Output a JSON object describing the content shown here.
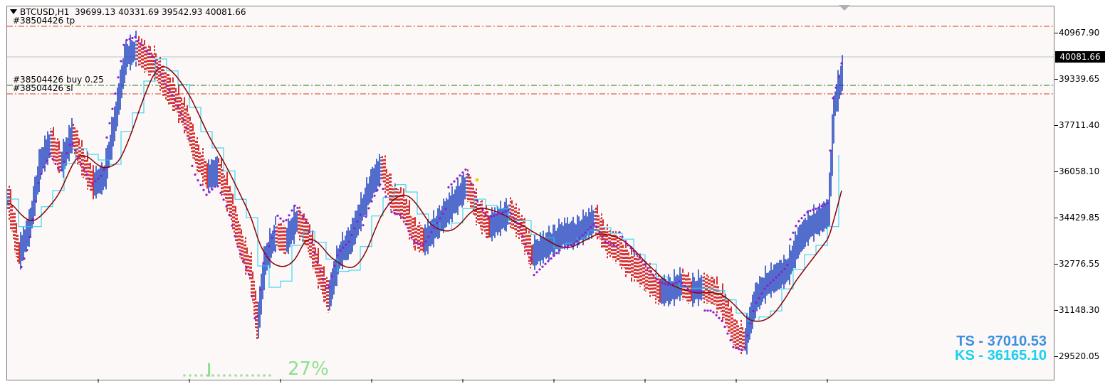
{
  "header": {
    "symbol": "BTCUSD,H1",
    "ohlc": "39699.13 40331.69 39542.93 40081.66"
  },
  "orders": {
    "tp_label": "#38504426 tp",
    "buy_label": "#38504426 buy 0.25",
    "sl_label": "#38504426 sl"
  },
  "price_scale": {
    "ticks": [
      "40967.90",
      "39339.65",
      "37711.40",
      "36058.10",
      "34429.85",
      "32776.55",
      "31148.30",
      "29520.05"
    ],
    "current_price": "40081.66"
  },
  "indicators": {
    "ts_label": "TS - 37010.53",
    "ks_label": "KS - 36165.10",
    "progress_percent": "27%",
    "progress_value": 0.27
  },
  "colors": {
    "bull_candle": "#1a3fbf",
    "bear_candle": "#cc1111",
    "parabolic_sar": "#8a1fd0",
    "moving_average": "#8b0000",
    "kijun_line": "#19d0f0",
    "tp_sl_line": "#d04020",
    "buy_line": "#1a7a1a",
    "ts_text": "#3a8fe0",
    "ks_text": "#19d0f0",
    "progress_text": "#8ce08c"
  }
}
